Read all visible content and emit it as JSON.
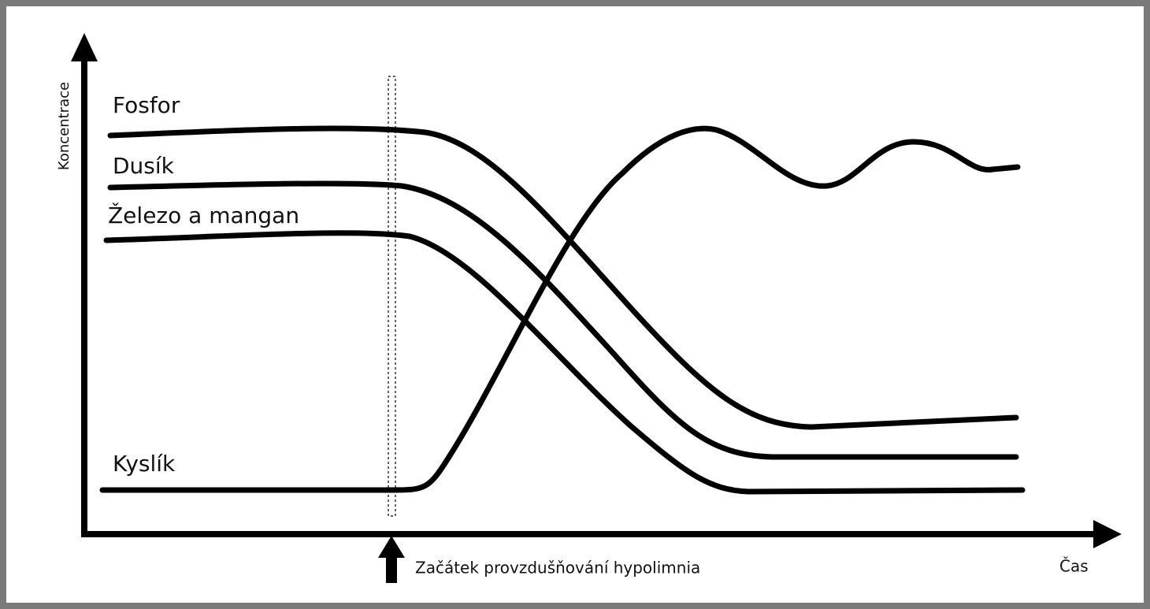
{
  "y_axis_label": "Koncentrace",
  "x_axis_label": "Čas",
  "curves": [
    {
      "label": "Fosfor"
    },
    {
      "label": "Dusík"
    },
    {
      "label": "Železo a mangan"
    },
    {
      "label": "Kyslík"
    }
  ],
  "annotation": "Začátek provzdušňování hypolimnia"
}
